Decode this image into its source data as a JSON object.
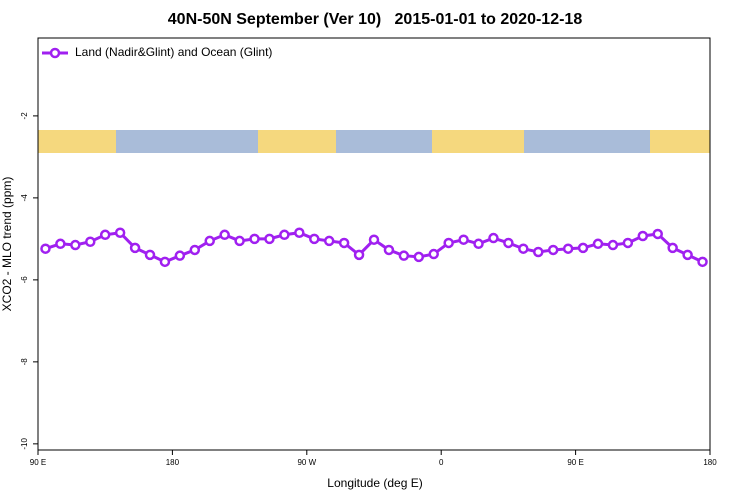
{
  "chart_data": {
    "type": "line",
    "title": "40N-50N September (Ver 10)   2015-01-01 to 2020-12-18",
    "x_label": "Longitude (deg E)",
    "y_label": "XCO2 - MLO trend (ppm)",
    "x": [
      95,
      105,
      115,
      125,
      135,
      145,
      155,
      165,
      175,
      185,
      195,
      205,
      215,
      225,
      235,
      245,
      255,
      265,
      275,
      285,
      295,
      305,
      315,
      325,
      335,
      345,
      355,
      365,
      375,
      385,
      395,
      405,
      415,
      425,
      435,
      445,
      455,
      465,
      475,
      485,
      495,
      505,
      515,
      525,
      535
    ],
    "series": [
      {
        "name": "Land (Nadir&Glint) and Ocean (Glint)",
        "color": "#a020f0",
        "values": [
          -5.24,
          -5.12,
          -5.15,
          -5.07,
          -4.9,
          -4.85,
          -5.22,
          -5.39,
          -5.56,
          -5.41,
          -5.27,
          -5.05,
          -4.9,
          -5.05,
          -5.0,
          -5.0,
          -4.9,
          -4.85,
          -5.0,
          -5.05,
          -5.1,
          -5.39,
          -5.02,
          -5.27,
          -5.41,
          -5.44,
          -5.37,
          -5.1,
          -5.02,
          -5.12,
          -4.98,
          -5.1,
          -5.24,
          -5.32,
          -5.27,
          -5.24,
          -5.22,
          -5.12,
          -5.15,
          -5.1,
          -4.93,
          -4.88,
          -5.22,
          -5.39,
          -5.56
        ]
      }
    ],
    "xlim": [
      90,
      540
    ],
    "xticks": [
      {
        "value": 90,
        "label": "90 E"
      },
      180,
      {
        "value": 270,
        "label": "90 W"
      },
      {
        "value": 360,
        "label": "0"
      },
      {
        "value": 450,
        "label": "90 E"
      },
      180
    ],
    "ylim": [
      -10.15,
      -0.1
    ],
    "yticks": [
      -2,
      -4,
      -6,
      -8,
      -10
    ],
    "legend": "top-left"
  }
}
